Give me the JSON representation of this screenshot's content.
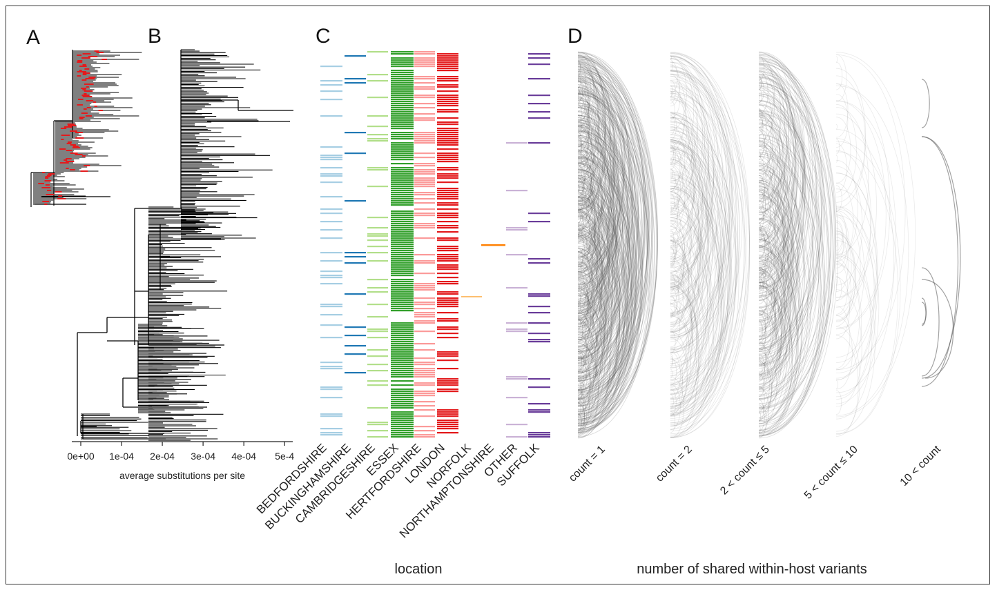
{
  "panels": {
    "a": "A",
    "b": "B",
    "c": "C",
    "d": "D"
  },
  "colors": {
    "tree": "#000000",
    "tree_tips_a": "#e41a1c",
    "arc": "#555555"
  },
  "chart_data": [
    {
      "panel": "B",
      "type": "other",
      "chart_kind": "phylogenetic tree",
      "xlabel": "average substitutions per site",
      "x_ticks": [
        "0e+00",
        "1e-04",
        "2e-04",
        "3e-04",
        "4e-04",
        "5e-4"
      ],
      "x_tick_values": [
        0,
        0.0001,
        0.0002,
        0.0003,
        0.0004,
        0.0005
      ],
      "xlim": [
        0,
        0.00052
      ]
    },
    {
      "panel": "C",
      "type": "heatmap",
      "xlabel": "location",
      "categories": [
        {
          "name": "BEDFORDSHIRE",
          "color": "#a6cee3"
        },
        {
          "name": "BUCKINGHAMSHIRE",
          "color": "#1f78b4"
        },
        {
          "name": "CAMBRIDGESHIRE",
          "color": "#b2df8a"
        },
        {
          "name": "ESSEX",
          "color": "#33a02c"
        },
        {
          "name": "HERTFORDSHIRE",
          "color": "#fb9a99"
        },
        {
          "name": "LONDON",
          "color": "#e31a1c"
        },
        {
          "name": "NORFOLK",
          "color": "#fdbf6f"
        },
        {
          "name": "NORTHAMPTONSHIRE",
          "color": "#ff7f00"
        },
        {
          "name": "OTHER",
          "color": "#cab2d6"
        },
        {
          "name": "SUFFOLK",
          "color": "#6a3d9a"
        }
      ]
    },
    {
      "panel": "D",
      "type": "other",
      "chart_kind": "arc diagram",
      "xlabel": "number of shared within-host variants",
      "groups": [
        {
          "label": "count = 1",
          "opacity": 0.22
        },
        {
          "label": "count = 2",
          "opacity": 0.14
        },
        {
          "label": "2 < count ≤ 5",
          "opacity": 0.2
        },
        {
          "label": "5 < count ≤ 10",
          "opacity": 0.12
        },
        {
          "label": "10 < count",
          "opacity": 0.55
        }
      ]
    }
  ]
}
